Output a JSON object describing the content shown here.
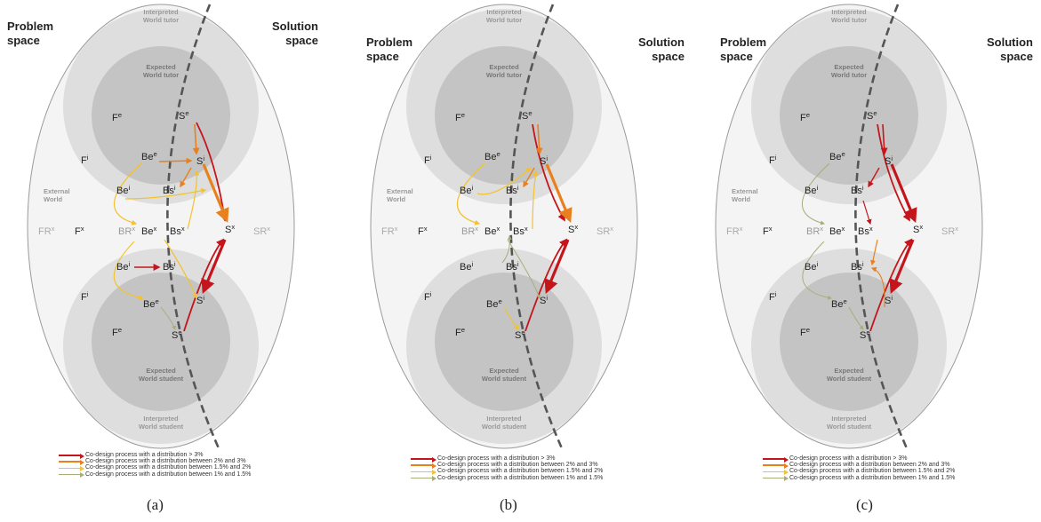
{
  "panels": [
    {
      "id": "a",
      "caption": "(a)"
    },
    {
      "id": "b",
      "caption": "(b)"
    },
    {
      "id": "c",
      "caption": "(c)"
    }
  ],
  "space": {
    "problem_l1": "Problem",
    "problem_l2": "space",
    "solution_l1": "Solution",
    "solution_l2": "space"
  },
  "worlds": {
    "interpreted_tutor_l1": "Interpreted",
    "interpreted_tutor_l2": "World tutor",
    "expected_tutor_l1": "Expected",
    "expected_tutor_l2": "World tutor",
    "expected_student_l1": "Expected",
    "expected_student_l2": "World student",
    "interpreted_student_l1": "Interpreted",
    "interpreted_student_l2": "World student",
    "external_l1": "External",
    "external_l2": "World"
  },
  "nodes": {
    "F": "F",
    "Be": "Be",
    "Bs": "Bs",
    "S": "S",
    "FR": "FR",
    "BR": "BR",
    "SR": "SR",
    "sup_e": "e",
    "sup_i": "i",
    "sup_x": "x"
  },
  "legend": [
    {
      "label": "Co-design process with a distribution > 3%",
      "color": "#c4151c"
    },
    {
      "label": "Co-design process with a distribution between 2% and 3%",
      "color": "#e8801e"
    },
    {
      "label": "Co-design process with a distribution between 1.5% and 2%",
      "color": "#f2c230"
    },
    {
      "label": "Co-design process with a distribution between 1% and 1.5%",
      "color": "#a8ad7a"
    }
  ],
  "colors": {
    "red": "#c4151c",
    "orange": "#e8801e",
    "yellow": "#f2c230",
    "olive": "#a8ad7a",
    "outer": "#f4f4f4",
    "interpreted": "#dedede",
    "expected": "#c4c4c4"
  }
}
